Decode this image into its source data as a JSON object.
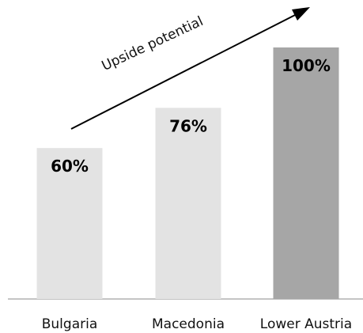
{
  "chart_data": {
    "type": "bar",
    "categories": [
      "Bulgaria",
      "Macedonia",
      "Lower Austria"
    ],
    "values": [
      60,
      76,
      100
    ],
    "value_labels": [
      "60%",
      "76%",
      "100%"
    ],
    "ylim": [
      0,
      100
    ],
    "grid": false,
    "annotation": "Upside potential",
    "colors": {
      "Bulgaria": "#e3e3e3",
      "Macedonia": "#e3e3e3",
      "Lower Austria": "#a6a6a6",
      "axis": "#888888",
      "arrow": "#000000"
    }
  }
}
